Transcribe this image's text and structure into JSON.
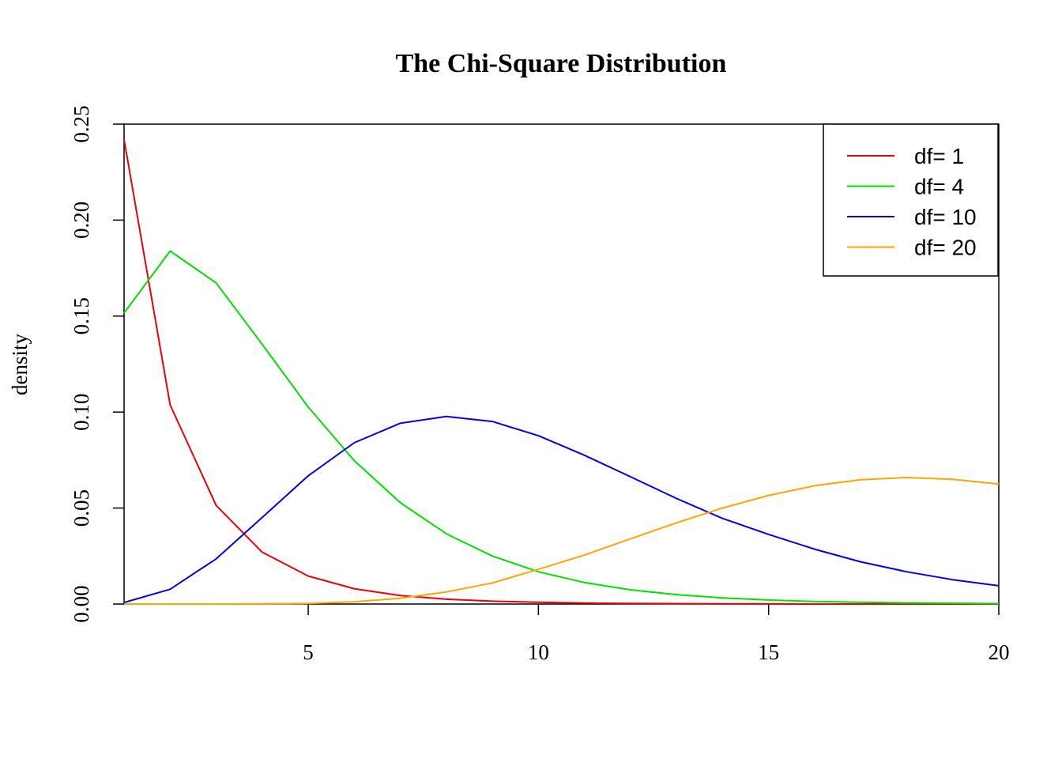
{
  "chart_data": {
    "type": "line",
    "title": "The Chi-Square Distribution",
    "xlabel": "",
    "ylabel": "density",
    "xlim": [
      1,
      20
    ],
    "ylim": [
      0,
      0.25
    ],
    "x_ticks": [
      5,
      10,
      15,
      20
    ],
    "y_ticks": [
      0.0,
      0.05,
      0.1,
      0.15,
      0.2,
      0.25
    ],
    "y_tick_labels": [
      "0.00",
      "0.05",
      "0.10",
      "0.15",
      "0.20",
      "0.25"
    ],
    "grid": false,
    "legend_position": "top-right",
    "x": [
      1,
      2,
      3,
      4,
      5,
      6,
      7,
      8,
      9,
      10,
      11,
      12,
      13,
      14,
      15,
      16,
      17,
      18,
      19,
      20
    ],
    "series": [
      {
        "name": "df= 1",
        "color": "#e8000b",
        "values": [
          0.242,
          0.1038,
          0.0514,
          0.027,
          0.0146,
          0.008,
          0.0044,
          0.0025,
          0.0015,
          0.0009,
          0.0005,
          0.0003,
          0.0002,
          0.0001,
          0.0001,
          0.0,
          0.0,
          0.0,
          0.0,
          0.0
        ]
      },
      {
        "name": "df= 4",
        "color": "#00e000",
        "values": [
          0.1516,
          0.1839,
          0.1673,
          0.1353,
          0.1026,
          0.0747,
          0.0528,
          0.0366,
          0.025,
          0.0168,
          0.0112,
          0.0074,
          0.0049,
          0.0032,
          0.0021,
          0.0013,
          0.0009,
          0.0006,
          0.0004,
          0.0002
        ]
      },
      {
        "name": "df= 10",
        "color": "#0000e0",
        "values": [
          0.0008,
          0.0077,
          0.0235,
          0.0451,
          0.0668,
          0.084,
          0.0942,
          0.0977,
          0.0951,
          0.0877,
          0.0775,
          0.0663,
          0.055,
          0.0446,
          0.0363,
          0.0286,
          0.022,
          0.0168,
          0.0127,
          0.0095
        ]
      },
      {
        "name": "df= 20",
        "color": "#ffa500",
        "values": [
          0.0,
          0.0,
          0.0,
          0.0001,
          0.0003,
          0.0012,
          0.003,
          0.0063,
          0.011,
          0.0181,
          0.0255,
          0.034,
          0.0423,
          0.05,
          0.0566,
          0.0616,
          0.0648,
          0.0659,
          0.065,
          0.0625
        ]
      }
    ]
  }
}
